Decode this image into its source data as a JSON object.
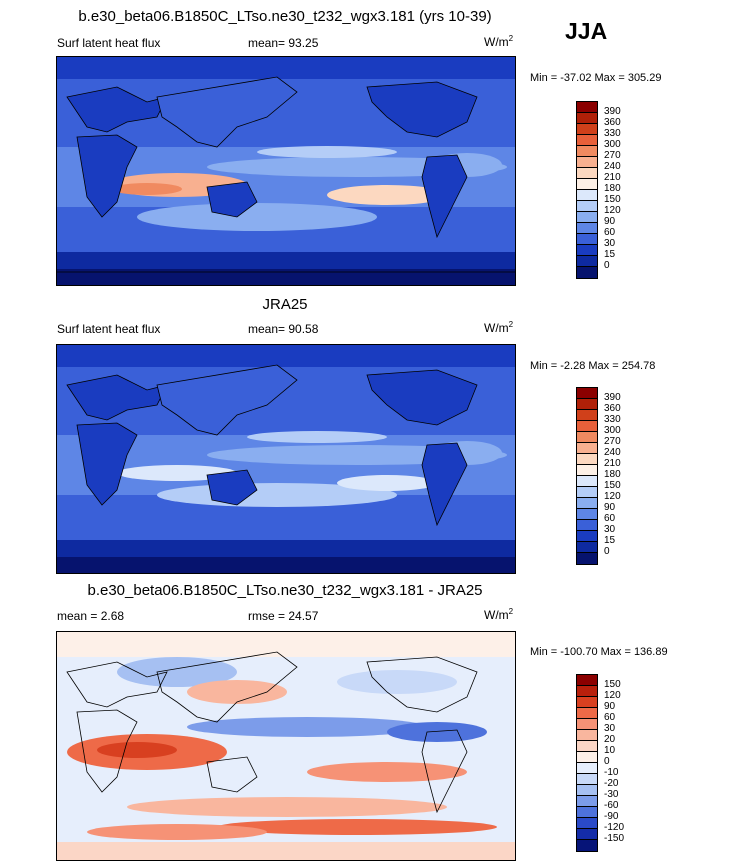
{
  "season": "JJA",
  "panels": [
    {
      "title": "b.e30_beta06.B1850C_LTso.ne30_t232_wgx3.181 (yrs 10-39)",
      "left_label": "Surf latent heat flux",
      "mid_label": "mean=  93.25",
      "units": "W/m",
      "units_sup": "2",
      "minmax": "Min = -37.02 Max = 305.29",
      "colorbar_labels": [
        "390",
        "360",
        "330",
        "300",
        "270",
        "240",
        "210",
        "180",
        "150",
        "120",
        "90",
        "60",
        "30",
        "15",
        "0"
      ]
    },
    {
      "title": "JRA25",
      "left_label": "Surf latent heat flux",
      "mid_label": "mean=  90.58",
      "units": "W/m",
      "units_sup": "2",
      "minmax": "Min =  -2.28 Max = 254.78",
      "colorbar_labels": [
        "390",
        "360",
        "330",
        "300",
        "270",
        "240",
        "210",
        "180",
        "150",
        "120",
        "90",
        "60",
        "30",
        "15",
        "0"
      ]
    },
    {
      "title": "b.e30_beta06.B1850C_LTso.ne30_t232_wgx3.181 - JRA25",
      "left_label": "mean =   2.68",
      "mid_label": "rmse =  24.57",
      "units": "W/m",
      "units_sup": "2",
      "minmax": "Min = -100.70 Max = 136.89",
      "colorbar_labels": [
        "150",
        "120",
        "90",
        "60",
        "30",
        "20",
        "10",
        "0",
        "-10",
        "-20",
        "-30",
        "-60",
        "-90",
        "-120",
        "-150"
      ]
    }
  ],
  "colors": {
    "abs_scale": [
      "#8b0000",
      "#b02008",
      "#d0401a",
      "#e8603a",
      "#f08a60",
      "#f8b090",
      "#fcd8c0",
      "#fdf0e6",
      "#dce8fb",
      "#b4cdf7",
      "#8aaef0",
      "#5e86e6",
      "#3a60d8",
      "#1a3cc0",
      "#0e2aa0",
      "#06136e"
    ],
    "diff_scale": [
      "#8b0000",
      "#b8200c",
      "#d84020",
      "#ee6a48",
      "#f69276",
      "#f9b69e",
      "#fbd6c6",
      "#fdf0e8",
      "#e6eefc",
      "#c8d9f8",
      "#a6c0f2",
      "#7c9cea",
      "#4e72dc",
      "#2a4ac8",
      "#142ca8",
      "#061478"
    ]
  }
}
